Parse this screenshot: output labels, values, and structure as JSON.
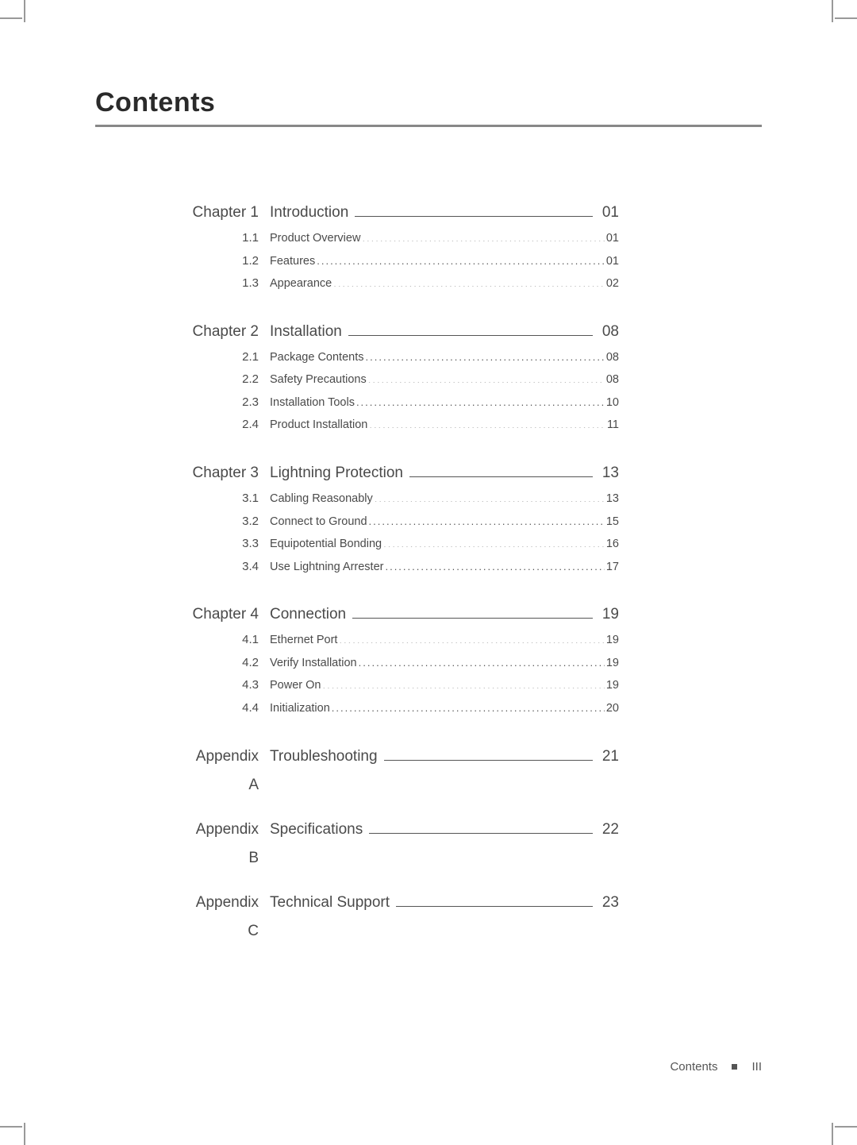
{
  "page_title": "Contents",
  "chapters": [
    {
      "label": "Chapter 1",
      "name": "Introduction",
      "page": "01",
      "subs": [
        {
          "num": "1.1",
          "name": "Product Overview",
          "page": "01"
        },
        {
          "num": "1.2",
          "name": "Features",
          "page": "01"
        },
        {
          "num": "1.3",
          "name": "Appearance",
          "page": "02"
        }
      ]
    },
    {
      "label": "Chapter 2",
      "name": "Installation",
      "page": "08",
      "subs": [
        {
          "num": "2.1",
          "name": "Package Contents",
          "page": "08"
        },
        {
          "num": "2.2",
          "name": "Safety Precautions",
          "page": "08"
        },
        {
          "num": "2.3",
          "name": "Installation Tools",
          "page": "10"
        },
        {
          "num": "2.4",
          "name": "Product Installation",
          "page": "11"
        }
      ]
    },
    {
      "label": "Chapter 3",
      "name": "Lightning Protection",
      "page": "13",
      "subs": [
        {
          "num": "3.1",
          "name": "Cabling Reasonably",
          "page": "13"
        },
        {
          "num": "3.2",
          "name": "Connect to Ground",
          "page": "15"
        },
        {
          "num": "3.3",
          "name": "Equipotential Bonding",
          "page": "16"
        },
        {
          "num": "3.4",
          "name": "Use Lightning Arrester",
          "page": "17"
        }
      ]
    },
    {
      "label": "Chapter 4",
      "name": "Connection",
      "page": "19",
      "subs": [
        {
          "num": "4.1",
          "name": "Ethernet Port",
          "page": "19"
        },
        {
          "num": "4.2",
          "name": "Verify Installation",
          "page": "19"
        },
        {
          "num": "4.3",
          "name": "Power On",
          "page": "19"
        },
        {
          "num": "4.4",
          "name": "Initialization",
          "page": "20"
        }
      ]
    }
  ],
  "appendices": [
    {
      "label": "Appendix A",
      "name": "Troubleshooting",
      "page": "21"
    },
    {
      "label": "Appendix B",
      "name": "Specifications",
      "page": "22"
    },
    {
      "label": "Appendix C",
      "name": "Technical Support",
      "page": "23"
    }
  ],
  "footer": {
    "label": "Contents",
    "roman": "III"
  },
  "colors": {
    "text": "#3a3a3a",
    "rule": "#888888",
    "leader": "#555555",
    "background": "#ffffff"
  }
}
